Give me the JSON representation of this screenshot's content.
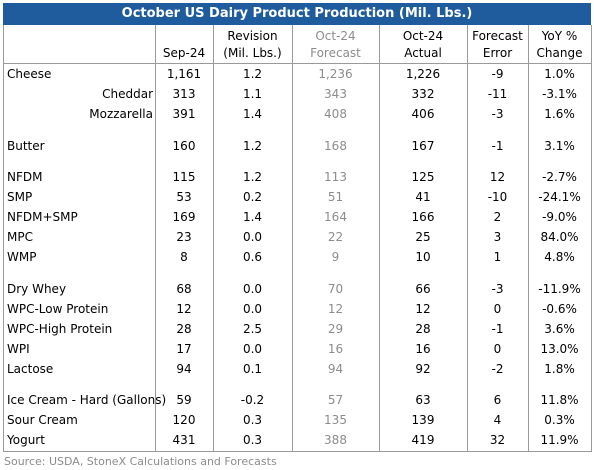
{
  "header": {
    "title": "October US Dairy Product Production (Mil. Lbs.)"
  },
  "table": {
    "columns": [
      [
        "Sep-24"
      ],
      [
        "Revision",
        "(Mil. Lbs.)"
      ],
      [
        "Oct-24",
        "Forecast"
      ],
      [
        "Oct-24",
        "Actual"
      ],
      [
        "Forecast",
        "Error"
      ],
      [
        "YoY %",
        "Change"
      ]
    ],
    "groups": [
      {
        "rows": [
          [
            "Cheese",
            "1,161",
            "1.2",
            "1,236",
            "1,226",
            "-9",
            "1.0%"
          ],
          [
            "Cheddar",
            "313",
            "1.1",
            "343",
            "332",
            "-11",
            "-3.1%"
          ],
          [
            "Mozzarella",
            "391",
            "1.4",
            "408",
            "406",
            "-3",
            "1.6%"
          ]
        ]
      },
      {
        "rows": [
          [
            "Butter",
            "160",
            "1.2",
            "168",
            "167",
            "-1",
            "3.1%"
          ]
        ]
      },
      {
        "rows": [
          [
            "NFDM",
            "115",
            "1.2",
            "113",
            "125",
            "12",
            "-2.7%"
          ],
          [
            "SMP",
            "53",
            "0.2",
            "51",
            "41",
            "-10",
            "-24.1%"
          ],
          [
            "NFDM+SMP",
            "169",
            "1.4",
            "164",
            "166",
            "2",
            "-9.0%"
          ],
          [
            "MPC",
            "23",
            "0.0",
            "22",
            "25",
            "3",
            "84.0%"
          ],
          [
            "WMP",
            "8",
            "0.6",
            "9",
            "10",
            "1",
            "4.8%"
          ]
        ]
      },
      {
        "rows": [
          [
            "Dry Whey",
            "68",
            "0.0",
            "70",
            "66",
            "-3",
            "-11.9%"
          ],
          [
            "WPC-Low Protein",
            "12",
            "0.0",
            "12",
            "12",
            "0",
            "-0.6%"
          ],
          [
            "WPC-High Protein",
            "28",
            "2.5",
            "29",
            "28",
            "-1",
            "3.6%"
          ],
          [
            "WPI",
            "17",
            "0.0",
            "16",
            "16",
            "0",
            "13.0%"
          ],
          [
            "Lactose",
            "94",
            "0.1",
            "94",
            "92",
            "-2",
            "1.8%"
          ]
        ]
      },
      {
        "rows": [
          [
            "Ice Cream - Hard (Gallons)",
            "59",
            "-0.2",
            "57",
            "63",
            "6",
            "11.8%"
          ],
          [
            "Sour Cream",
            "120",
            "0.3",
            "135",
            "139",
            "4",
            "0.3%"
          ],
          [
            "Yogurt",
            "431",
            "0.3",
            "388",
            "419",
            "32",
            "11.9%"
          ]
        ]
      }
    ]
  },
  "footer": {
    "source": "Source: USDA, StoneX Calculations and Forecasts"
  }
}
